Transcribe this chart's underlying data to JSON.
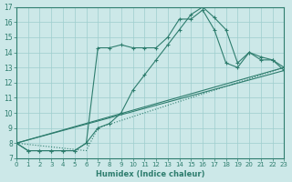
{
  "xlabel": "Humidex (Indice chaleur)",
  "background_color": "#cce8e8",
  "line_color": "#2e7d6e",
  "grid_color": "#9ecece",
  "xlim": [
    0,
    23
  ],
  "ylim": [
    7,
    17
  ],
  "yticks": [
    7,
    8,
    9,
    10,
    11,
    12,
    13,
    14,
    15,
    16,
    17
  ],
  "xticks": [
    0,
    1,
    2,
    3,
    4,
    5,
    6,
    7,
    8,
    9,
    10,
    11,
    12,
    13,
    14,
    15,
    16,
    17,
    18,
    19,
    20,
    21,
    22,
    23
  ],
  "lines": [
    {
      "x": [
        0,
        1,
        2,
        3,
        4,
        5,
        6,
        7,
        8,
        9,
        10,
        11,
        12,
        13,
        14,
        15,
        16,
        17,
        18,
        19,
        20,
        21,
        22,
        23
      ],
      "y": [
        8.0,
        7.5,
        7.5,
        7.5,
        7.5,
        7.5,
        8.0,
        14.3,
        14.3,
        14.5,
        14.3,
        14.3,
        14.3,
        15.0,
        16.2,
        16.2,
        16.8,
        15.5,
        13.3,
        13.0,
        14.0,
        13.7,
        13.5,
        13.0
      ],
      "style": "-",
      "marker": "+"
    },
    {
      "x": [
        0,
        1,
        2,
        3,
        4,
        5,
        6,
        7,
        8,
        9,
        10,
        11,
        12,
        13,
        14,
        15,
        16,
        17,
        18,
        19,
        20,
        21,
        22,
        23
      ],
      "y": [
        8.0,
        7.5,
        7.5,
        7.5,
        7.5,
        7.5,
        8.0,
        9.0,
        9.3,
        10.0,
        11.5,
        12.5,
        13.5,
        14.5,
        15.5,
        16.5,
        17.0,
        16.3,
        15.5,
        13.3,
        14.0,
        13.5,
        13.5,
        12.8
      ],
      "style": "-",
      "marker": "+"
    },
    {
      "x": [
        0,
        23
      ],
      "y": [
        8.0,
        13.0
      ],
      "style": "-",
      "marker": null
    },
    {
      "x": [
        0,
        23
      ],
      "y": [
        8.0,
        12.8
      ],
      "style": "-",
      "marker": null
    },
    {
      "x": [
        0,
        6,
        7,
        23
      ],
      "y": [
        8.0,
        7.5,
        9.0,
        13.0
      ],
      "style": ":",
      "marker": null
    }
  ]
}
